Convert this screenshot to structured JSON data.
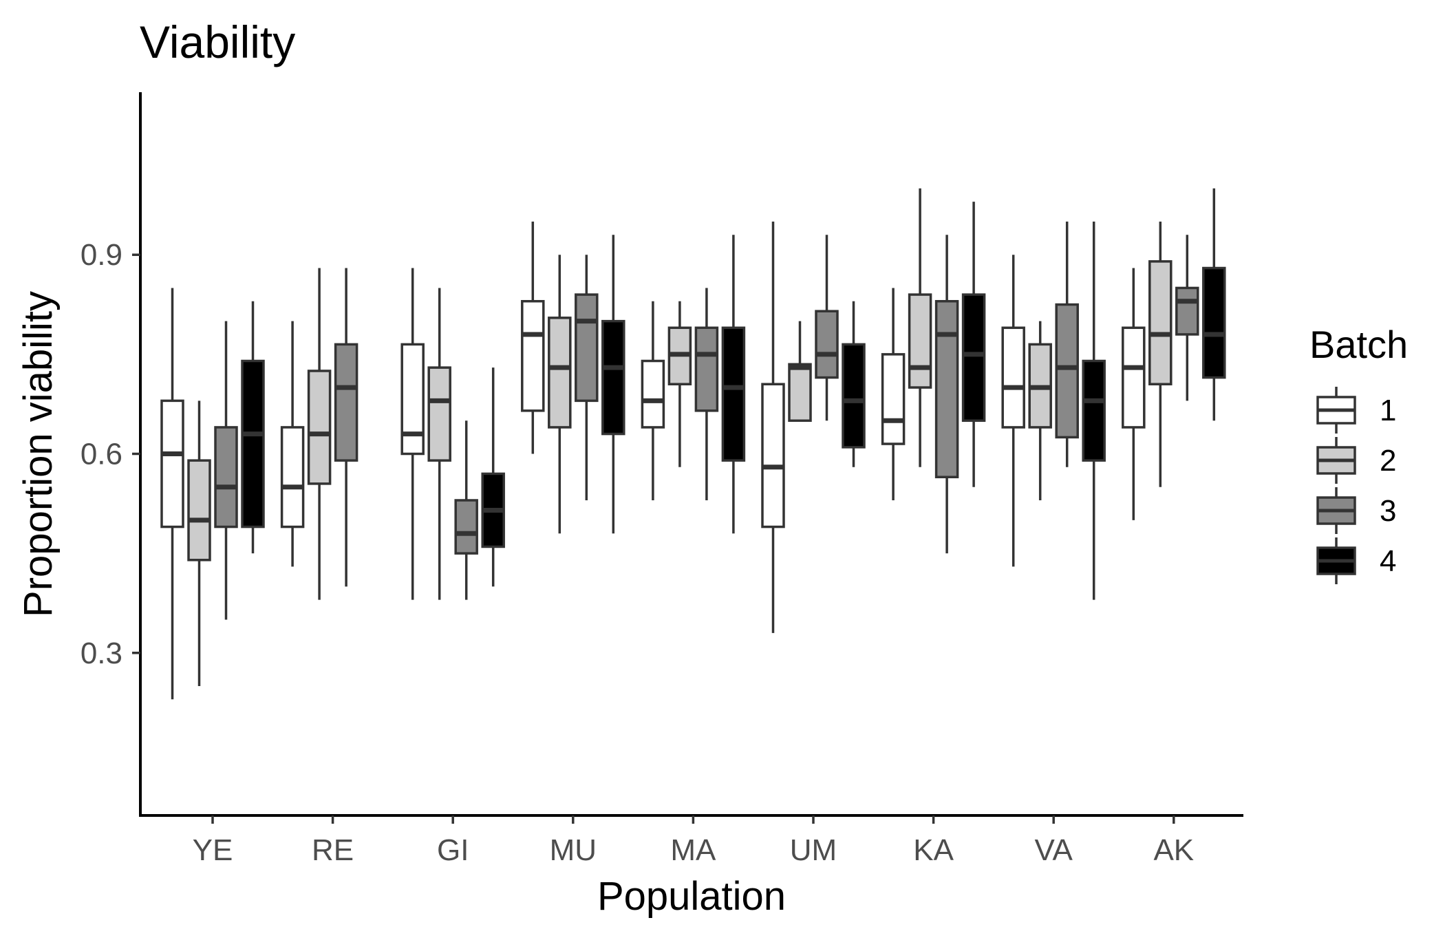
{
  "chart_data": {
    "type": "boxplot",
    "title": "Viability",
    "xlabel": "Population",
    "ylabel": "Proportion viability",
    "categories": [
      "YE",
      "RE",
      "GI",
      "MU",
      "MA",
      "UM",
      "KA",
      "VA",
      "AK"
    ],
    "ylim": [
      0.055,
      1.145
    ],
    "yticks": [
      0.3,
      0.6,
      0.9
    ],
    "ytick_labels": [
      "0.3",
      "0.6",
      "0.9"
    ],
    "grid": false,
    "legend": {
      "title": "Batch",
      "position": "right"
    },
    "series": [
      {
        "name": "1",
        "color": "#ffffff",
        "boxes": [
          {
            "min": 0.23,
            "q1": 0.49,
            "median": 0.6,
            "q3": 0.68,
            "max": 0.85
          },
          {
            "min": 0.43,
            "q1": 0.49,
            "median": 0.55,
            "q3": 0.64,
            "max": 0.8
          },
          {
            "min": 0.38,
            "q1": 0.6,
            "median": 0.63,
            "q3": 0.765,
            "max": 0.88
          },
          {
            "min": 0.6,
            "q1": 0.665,
            "median": 0.78,
            "q3": 0.83,
            "max": 0.95
          },
          {
            "min": 0.53,
            "q1": 0.64,
            "median": 0.68,
            "q3": 0.74,
            "max": 0.83
          },
          {
            "min": 0.33,
            "q1": 0.49,
            "median": 0.58,
            "q3": 0.705,
            "max": 0.95
          },
          {
            "min": 0.53,
            "q1": 0.615,
            "median": 0.65,
            "q3": 0.75,
            "max": 0.85
          },
          {
            "min": 0.43,
            "q1": 0.64,
            "median": 0.7,
            "q3": 0.79,
            "max": 0.9
          },
          {
            "min": 0.5,
            "q1": 0.64,
            "median": 0.73,
            "q3": 0.79,
            "max": 0.88
          }
        ]
      },
      {
        "name": "2",
        "color": "#cccccc",
        "boxes": [
          {
            "min": 0.25,
            "q1": 0.44,
            "median": 0.5,
            "q3": 0.59,
            "max": 0.68
          },
          {
            "min": 0.38,
            "q1": 0.555,
            "median": 0.63,
            "q3": 0.725,
            "max": 0.88
          },
          {
            "min": 0.38,
            "q1": 0.59,
            "median": 0.68,
            "q3": 0.73,
            "max": 0.85
          },
          {
            "min": 0.48,
            "q1": 0.64,
            "median": 0.73,
            "q3": 0.805,
            "max": 0.9
          },
          {
            "min": 0.58,
            "q1": 0.705,
            "median": 0.75,
            "q3": 0.79,
            "max": 0.83
          },
          {
            "min": 0.65,
            "q1": 0.65,
            "median": 0.73,
            "q3": 0.735,
            "max": 0.8
          },
          {
            "min": 0.58,
            "q1": 0.7,
            "median": 0.73,
            "q3": 0.84,
            "max": 1.0
          },
          {
            "min": 0.53,
            "q1": 0.64,
            "median": 0.7,
            "q3": 0.765,
            "max": 0.8
          },
          {
            "min": 0.55,
            "q1": 0.705,
            "median": 0.78,
            "q3": 0.89,
            "max": 0.95
          }
        ]
      },
      {
        "name": "3",
        "color": "#888888",
        "boxes": [
          {
            "min": 0.35,
            "q1": 0.49,
            "median": 0.55,
            "q3": 0.64,
            "max": 0.8
          },
          {
            "min": 0.4,
            "q1": 0.59,
            "median": 0.7,
            "q3": 0.765,
            "max": 0.88
          },
          {
            "min": 0.38,
            "q1": 0.45,
            "median": 0.48,
            "q3": 0.53,
            "max": 0.65
          },
          {
            "min": 0.53,
            "q1": 0.68,
            "median": 0.8,
            "q3": 0.84,
            "max": 0.9
          },
          {
            "min": 0.53,
            "q1": 0.665,
            "median": 0.75,
            "q3": 0.79,
            "max": 0.85
          },
          {
            "min": 0.65,
            "q1": 0.715,
            "median": 0.75,
            "q3": 0.815,
            "max": 0.93
          },
          {
            "min": 0.45,
            "q1": 0.565,
            "median": 0.78,
            "q3": 0.83,
            "max": 0.93
          },
          {
            "min": 0.58,
            "q1": 0.625,
            "median": 0.73,
            "q3": 0.825,
            "max": 0.95
          },
          {
            "min": 0.68,
            "q1": 0.78,
            "median": 0.83,
            "q3": 0.85,
            "max": 0.93
          }
        ]
      },
      {
        "name": "4",
        "color": "#000000",
        "boxes": [
          {
            "min": 0.45,
            "q1": 0.49,
            "median": 0.63,
            "q3": 0.74,
            "max": 0.83
          },
          null,
          {
            "min": 0.4,
            "q1": 0.46,
            "median": 0.515,
            "q3": 0.57,
            "max": 0.73
          },
          {
            "min": 0.48,
            "q1": 0.63,
            "median": 0.73,
            "q3": 0.8,
            "max": 0.93
          },
          {
            "min": 0.48,
            "q1": 0.59,
            "median": 0.7,
            "q3": 0.79,
            "max": 0.93
          },
          {
            "min": 0.58,
            "q1": 0.61,
            "median": 0.68,
            "q3": 0.765,
            "max": 0.83
          },
          {
            "min": 0.55,
            "q1": 0.65,
            "median": 0.75,
            "q3": 0.84,
            "max": 0.98
          },
          {
            "min": 0.38,
            "q1": 0.59,
            "median": 0.68,
            "q3": 0.74,
            "max": 0.95
          },
          {
            "min": 0.65,
            "q1": 0.715,
            "median": 0.78,
            "q3": 0.88,
            "max": 1.0
          }
        ]
      }
    ]
  }
}
